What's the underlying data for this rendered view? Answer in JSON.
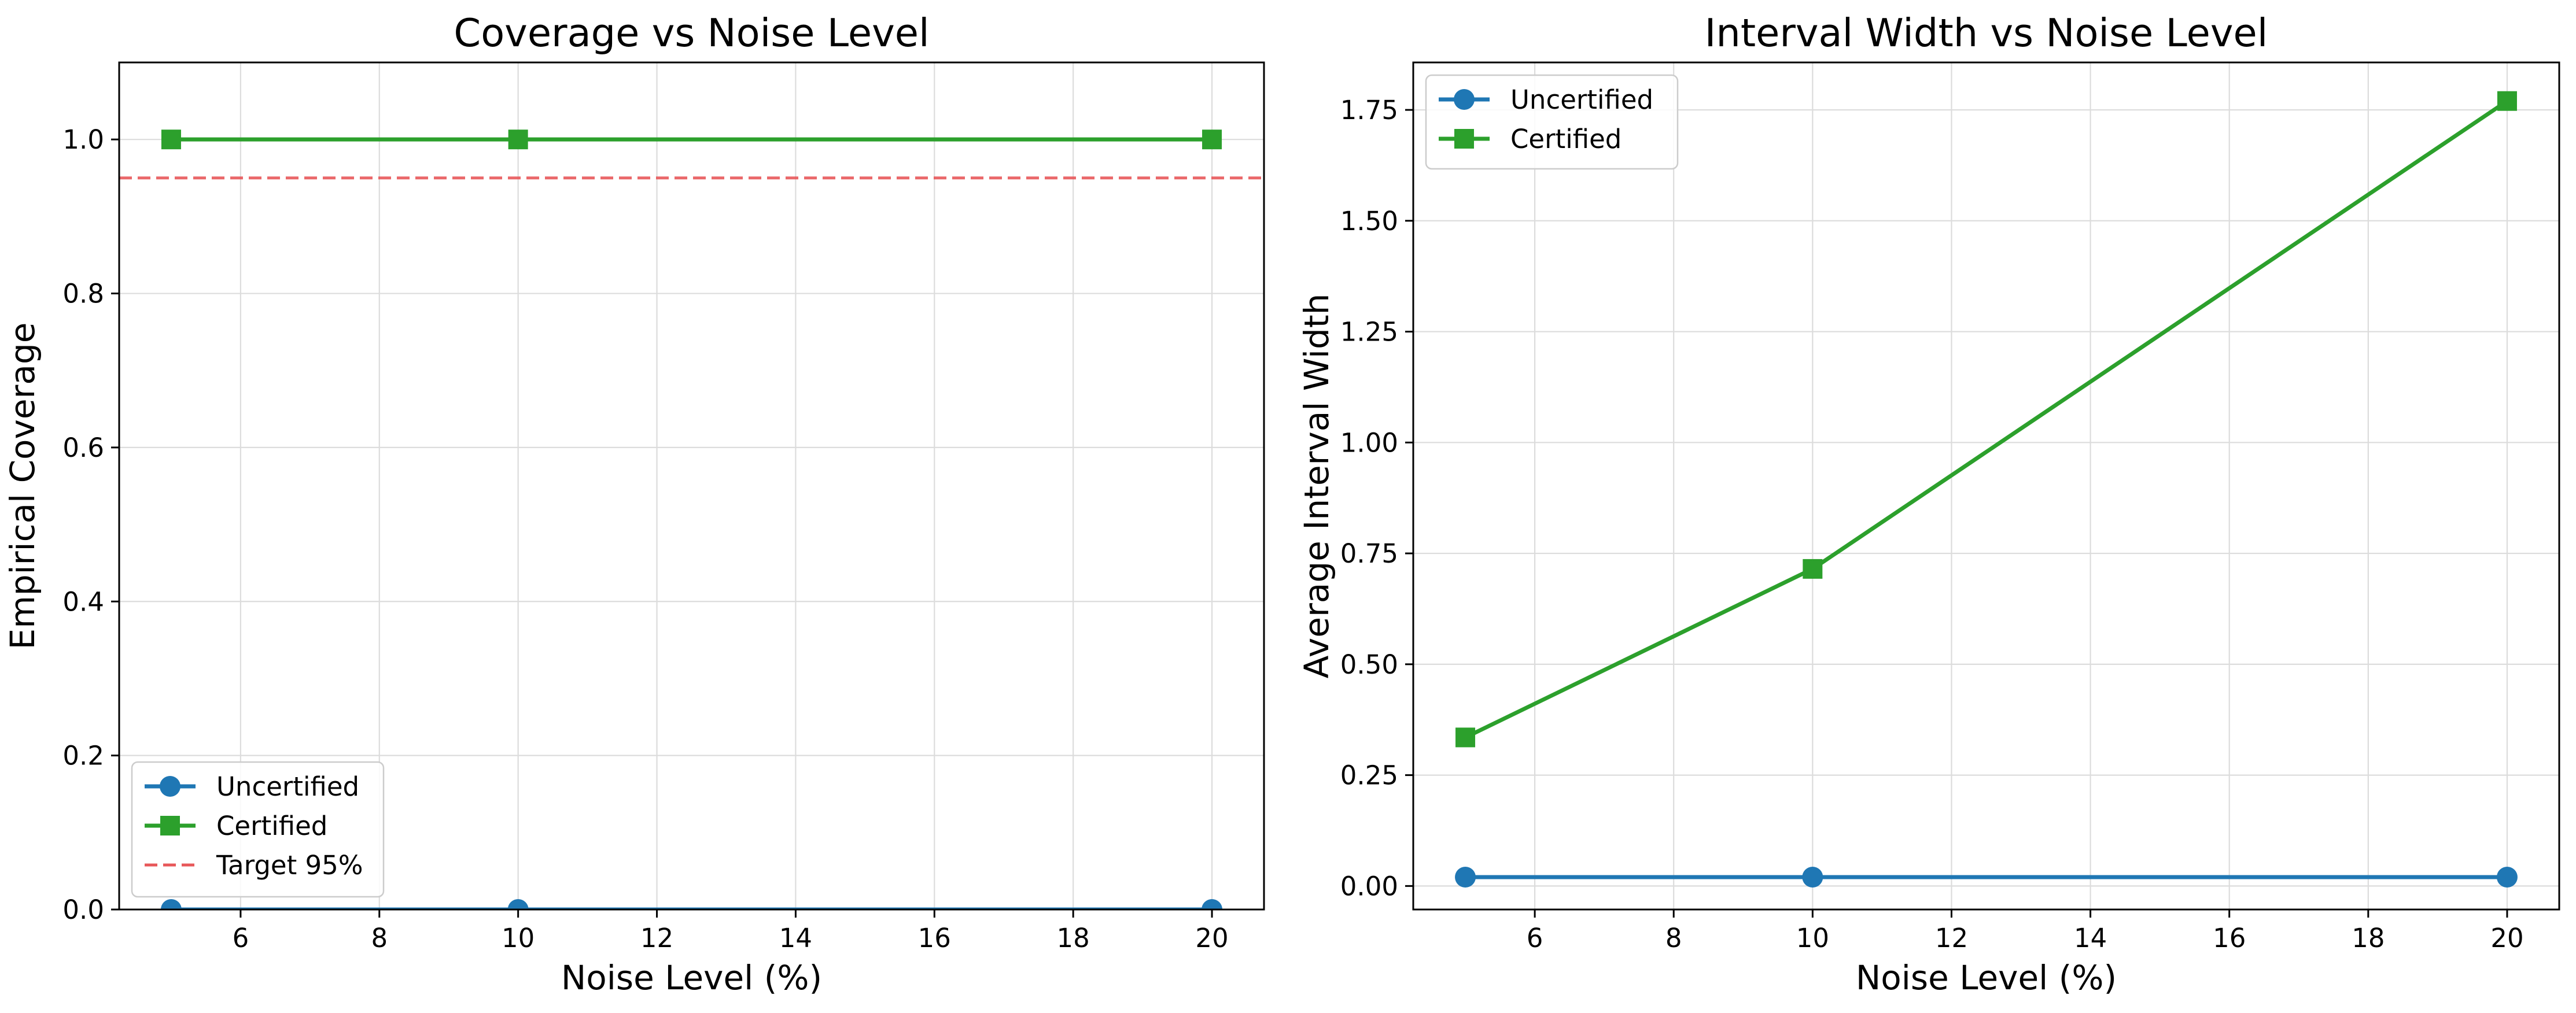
{
  "chart_data": [
    {
      "type": "line",
      "title": "Coverage vs Noise Level",
      "xlabel": "Noise Level (%)",
      "ylabel": "Empirical Coverage",
      "xlim": [
        4.25,
        20.75
      ],
      "ylim": [
        0.0,
        1.1
      ],
      "xticks": [
        6,
        8,
        10,
        12,
        14,
        16,
        18,
        20
      ],
      "yticks": [
        0.0,
        0.2,
        0.4,
        0.6,
        0.8,
        1.0
      ],
      "ytick_decimals": 1,
      "grid": true,
      "legend_position": "lower-left",
      "series": [
        {
          "name": "Uncertified",
          "x": [
            5,
            10,
            20
          ],
          "y": [
            0.0,
            0.0,
            0.0
          ],
          "color": "#1f77b4",
          "marker": "circle"
        },
        {
          "name": "Certified",
          "x": [
            5,
            10,
            20
          ],
          "y": [
            1.0,
            1.0,
            1.0
          ],
          "color": "#2ca02c",
          "marker": "square"
        }
      ],
      "reference_lines": [
        {
          "name": "Target 95%",
          "y": 0.95,
          "color": "#e8585a",
          "style": "dashed"
        }
      ]
    },
    {
      "type": "line",
      "title": "Interval Width vs Noise Level",
      "xlabel": "Noise Level (%)",
      "ylabel": "Average Interval Width",
      "xlim": [
        4.25,
        20.75
      ],
      "ylim": [
        -0.053,
        1.857
      ],
      "xticks": [
        6,
        8,
        10,
        12,
        14,
        16,
        18,
        20
      ],
      "yticks": [
        0.0,
        0.25,
        0.5,
        0.75,
        1.0,
        1.25,
        1.5,
        1.75
      ],
      "ytick_decimals": 2,
      "grid": true,
      "legend_position": "upper-left",
      "series": [
        {
          "name": "Uncertified",
          "x": [
            5,
            10,
            20
          ],
          "y": [
            0.02,
            0.02,
            0.02
          ],
          "color": "#1f77b4",
          "marker": "circle"
        },
        {
          "name": "Certified",
          "x": [
            5,
            10,
            20
          ],
          "y": [
            0.335,
            0.715,
            1.77
          ],
          "color": "#2ca02c",
          "marker": "square"
        }
      ],
      "reference_lines": []
    }
  ]
}
